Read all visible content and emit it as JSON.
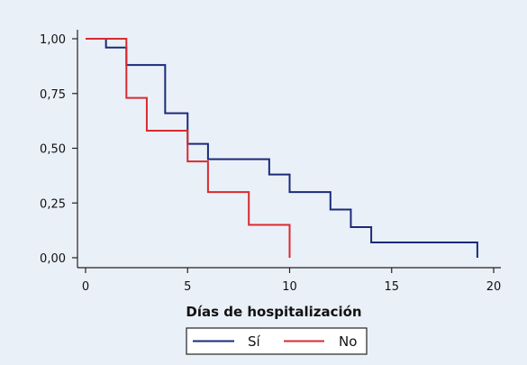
{
  "chart_data": {
    "type": "line",
    "subtype": "step",
    "title": "",
    "xlabel": "Días de hospitalización",
    "ylabel": "",
    "xlim": [
      0,
      20
    ],
    "ylim": [
      0,
      1
    ],
    "x_ticks": [
      0,
      5,
      10,
      15,
      20
    ],
    "x_tick_labels": [
      "0",
      "5",
      "10",
      "15",
      "20"
    ],
    "y_ticks": [
      0,
      0.25,
      0.5,
      0.75,
      1.0
    ],
    "y_tick_labels": [
      "0,00",
      "0,25",
      "0,50",
      "0,75",
      "1,00"
    ],
    "grid": false,
    "legend_position": "bottom",
    "series": [
      {
        "name": "Sí",
        "color": "#1a2a7a",
        "x": [
          0,
          1,
          2,
          3.9,
          5,
          6,
          9,
          10,
          12,
          13,
          14,
          19.2,
          19.2
        ],
        "y": [
          1.0,
          0.96,
          0.88,
          0.66,
          0.52,
          0.45,
          0.38,
          0.3,
          0.22,
          0.14,
          0.07,
          0.07,
          0.0
        ]
      },
      {
        "name": "No",
        "color": "#d92a32",
        "x": [
          0,
          2,
          3,
          5,
          6,
          8,
          10,
          10
        ],
        "y": [
          1.0,
          0.73,
          0.58,
          0.44,
          0.3,
          0.15,
          0.15,
          0.0
        ]
      }
    ]
  }
}
